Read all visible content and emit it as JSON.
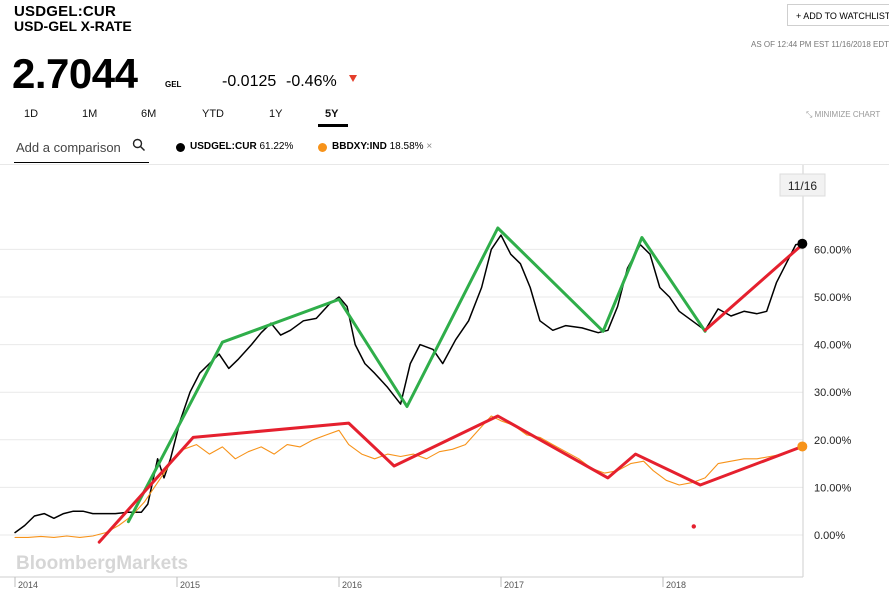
{
  "header": {
    "ticker": "USDGEL:CUR",
    "name": "USD-GEL X-RATE",
    "price": "2.7044",
    "currency": "GEL",
    "change": "-0.0125",
    "change_pct": "-0.46%",
    "watchlist_label": "+ ADD TO WATCHLIST",
    "as_of": "AS OF 12:44 PM EST 11/16/2018 EDT"
  },
  "ranges": [
    "1D",
    "1M",
    "6M",
    "YTD",
    "1Y",
    "5Y"
  ],
  "active_range": "5Y",
  "minimize_label": "MINIMIZE CHART",
  "compare": {
    "placeholder": "Add a comparison"
  },
  "legend": [
    {
      "symbol": "USDGEL:CUR",
      "value": "61.22%",
      "color": "#000000"
    },
    {
      "symbol": "BBDXY:IND",
      "value": "18.58%",
      "color": "#f7931a",
      "removable": true
    }
  ],
  "watermark": "BloombergMarkets",
  "date_badge": "11/16",
  "colors": {
    "down": "#e43e2b",
    "usdgel": "#000000",
    "bbdxy": "#f7931a",
    "trend_up": "#2fae4a",
    "trend_red": "#e5202e"
  },
  "chart_data": {
    "type": "line",
    "x_range": [
      2014.0,
      2018.88
    ],
    "ylim": [
      -9,
      68
    ],
    "y_ticks": [
      0,
      10,
      20,
      30,
      40,
      50,
      60
    ],
    "y_tick_labels": [
      "0.00%",
      "10.00%",
      "20.00%",
      "30.00%",
      "40.00%",
      "50.00%",
      "60.00%"
    ],
    "x_ticks": [
      2014,
      2015,
      2016,
      2017,
      2018
    ],
    "x_tick_labels": [
      "2014",
      "2015",
      "2016",
      "2017",
      "2018"
    ],
    "grid": true,
    "series": [
      {
        "name": "USDGEL:CUR",
        "color": "#000000",
        "points": [
          [
            2014.0,
            0.5
          ],
          [
            2014.06,
            2.0
          ],
          [
            2014.12,
            4.0
          ],
          [
            2014.18,
            4.5
          ],
          [
            2014.24,
            3.5
          ],
          [
            2014.3,
            4.5
          ],
          [
            2014.36,
            5.0
          ],
          [
            2014.42,
            5.0
          ],
          [
            2014.48,
            4.5
          ],
          [
            2014.54,
            4.5
          ],
          [
            2014.62,
            4.5
          ],
          [
            2014.7,
            4.8
          ],
          [
            2014.78,
            4.8
          ],
          [
            2014.82,
            6.5
          ],
          [
            2014.88,
            16.0
          ],
          [
            2014.92,
            12.0
          ],
          [
            2014.96,
            16.0
          ],
          [
            2015.02,
            24.0
          ],
          [
            2015.08,
            30.0
          ],
          [
            2015.14,
            34.0
          ],
          [
            2015.2,
            36.0
          ],
          [
            2015.26,
            38.0
          ],
          [
            2015.32,
            35.0
          ],
          [
            2015.38,
            37.0
          ],
          [
            2015.46,
            40.0
          ],
          [
            2015.52,
            42.5
          ],
          [
            2015.58,
            44.5
          ],
          [
            2015.64,
            42.0
          ],
          [
            2015.7,
            43.0
          ],
          [
            2015.78,
            45.0
          ],
          [
            2015.86,
            45.5
          ],
          [
            2015.94,
            48.5
          ],
          [
            2016.0,
            50.0
          ],
          [
            2016.05,
            48.0
          ],
          [
            2016.1,
            40.0
          ],
          [
            2016.16,
            36.0
          ],
          [
            2016.22,
            34.0
          ],
          [
            2016.3,
            31.0
          ],
          [
            2016.38,
            27.5
          ],
          [
            2016.44,
            36.0
          ],
          [
            2016.5,
            40.0
          ],
          [
            2016.58,
            39.0
          ],
          [
            2016.64,
            36.0
          ],
          [
            2016.72,
            41.0
          ],
          [
            2016.8,
            45.0
          ],
          [
            2016.88,
            52.0
          ],
          [
            2016.94,
            60.0
          ],
          [
            2017.0,
            63.0
          ],
          [
            2017.06,
            59.0
          ],
          [
            2017.12,
            57.0
          ],
          [
            2017.18,
            52.0
          ],
          [
            2017.24,
            45.0
          ],
          [
            2017.32,
            43.0
          ],
          [
            2017.4,
            44.0
          ],
          [
            2017.5,
            43.5
          ],
          [
            2017.6,
            42.5
          ],
          [
            2017.66,
            43.0
          ],
          [
            2017.72,
            48.0
          ],
          [
            2017.78,
            56.0
          ],
          [
            2017.86,
            61.0
          ],
          [
            2017.92,
            59.0
          ],
          [
            2017.98,
            52.0
          ],
          [
            2018.04,
            50.0
          ],
          [
            2018.1,
            47.0
          ],
          [
            2018.18,
            45.0
          ],
          [
            2018.26,
            43.0
          ],
          [
            2018.34,
            47.5
          ],
          [
            2018.42,
            46.0
          ],
          [
            2018.5,
            47.0
          ],
          [
            2018.58,
            46.5
          ],
          [
            2018.64,
            47.0
          ],
          [
            2018.7,
            53.0
          ],
          [
            2018.76,
            57.0
          ],
          [
            2018.82,
            61.0
          ],
          [
            2018.86,
            61.2
          ]
        ]
      },
      {
        "name": "BBDXY:IND",
        "color": "#f7931a",
        "points": [
          [
            2014.0,
            -0.5
          ],
          [
            2014.08,
            -0.5
          ],
          [
            2014.16,
            -0.3
          ],
          [
            2014.24,
            -0.5
          ],
          [
            2014.32,
            -0.2
          ],
          [
            2014.4,
            -0.5
          ],
          [
            2014.48,
            -0.2
          ],
          [
            2014.56,
            0.5
          ],
          [
            2014.64,
            2.0
          ],
          [
            2014.72,
            4.0
          ],
          [
            2014.8,
            7.0
          ],
          [
            2014.88,
            11.0
          ],
          [
            2014.96,
            15.0
          ],
          [
            2015.04,
            18.0
          ],
          [
            2015.12,
            19.0
          ],
          [
            2015.2,
            17.0
          ],
          [
            2015.28,
            18.5
          ],
          [
            2015.36,
            16.0
          ],
          [
            2015.44,
            17.5
          ],
          [
            2015.52,
            18.5
          ],
          [
            2015.6,
            17.0
          ],
          [
            2015.68,
            19.0
          ],
          [
            2015.76,
            18.5
          ],
          [
            2015.84,
            20.0
          ],
          [
            2015.92,
            21.0
          ],
          [
            2016.0,
            22.0
          ],
          [
            2016.06,
            19.0
          ],
          [
            2016.14,
            17.0
          ],
          [
            2016.22,
            16.0
          ],
          [
            2016.3,
            17.0
          ],
          [
            2016.38,
            16.5
          ],
          [
            2016.46,
            17.0
          ],
          [
            2016.54,
            16.0
          ],
          [
            2016.62,
            17.5
          ],
          [
            2016.7,
            18.0
          ],
          [
            2016.78,
            19.0
          ],
          [
            2016.86,
            22.0
          ],
          [
            2016.94,
            25.0
          ],
          [
            2017.0,
            24.0
          ],
          [
            2017.08,
            23.0
          ],
          [
            2017.16,
            21.0
          ],
          [
            2017.24,
            20.5
          ],
          [
            2017.32,
            19.0
          ],
          [
            2017.4,
            17.5
          ],
          [
            2017.48,
            16.0
          ],
          [
            2017.56,
            14.0
          ],
          [
            2017.64,
            13.0
          ],
          [
            2017.72,
            13.5
          ],
          [
            2017.8,
            15.0
          ],
          [
            2017.88,
            15.5
          ],
          [
            2017.94,
            13.5
          ],
          [
            2018.02,
            11.5
          ],
          [
            2018.1,
            10.5
          ],
          [
            2018.18,
            11.0
          ],
          [
            2018.26,
            12.0
          ],
          [
            2018.34,
            15.0
          ],
          [
            2018.42,
            15.5
          ],
          [
            2018.5,
            16.0
          ],
          [
            2018.58,
            16.0
          ],
          [
            2018.66,
            16.5
          ],
          [
            2018.74,
            17.0
          ],
          [
            2018.82,
            18.0
          ],
          [
            2018.86,
            18.6
          ]
        ]
      },
      {
        "name": "",
        "color": "#2fae4a",
        "points": [
          [
            2014.7,
            2.8
          ],
          [
            2015.28,
            40.5
          ],
          [
            2016.0,
            49.5
          ],
          [
            2016.42,
            27.0
          ],
          [
            2016.98,
            64.5
          ],
          [
            2017.63,
            42.8
          ],
          [
            2017.87,
            62.5
          ],
          [
            2018.26,
            42.8
          ]
        ]
      },
      {
        "name": "",
        "color": "#e5202e",
        "points": [
          [
            2014.52,
            -1.5
          ],
          [
            2015.1,
            20.5
          ],
          [
            2016.06,
            23.5
          ],
          [
            2016.34,
            14.5
          ],
          [
            2016.98,
            25.0
          ],
          [
            2017.66,
            12.0
          ],
          [
            2017.83,
            17.0
          ],
          [
            2018.23,
            10.5
          ],
          [
            2018.86,
            18.6
          ]
        ]
      },
      {
        "name": "",
        "color": "#e5202e",
        "points": [
          [
            2018.26,
            43.0
          ],
          [
            2018.86,
            61.0
          ]
        ]
      }
    ],
    "annotations": [
      {
        "type": "dot",
        "x": 2018.19,
        "y": 1.8,
        "color": "#e5202e"
      }
    ]
  }
}
